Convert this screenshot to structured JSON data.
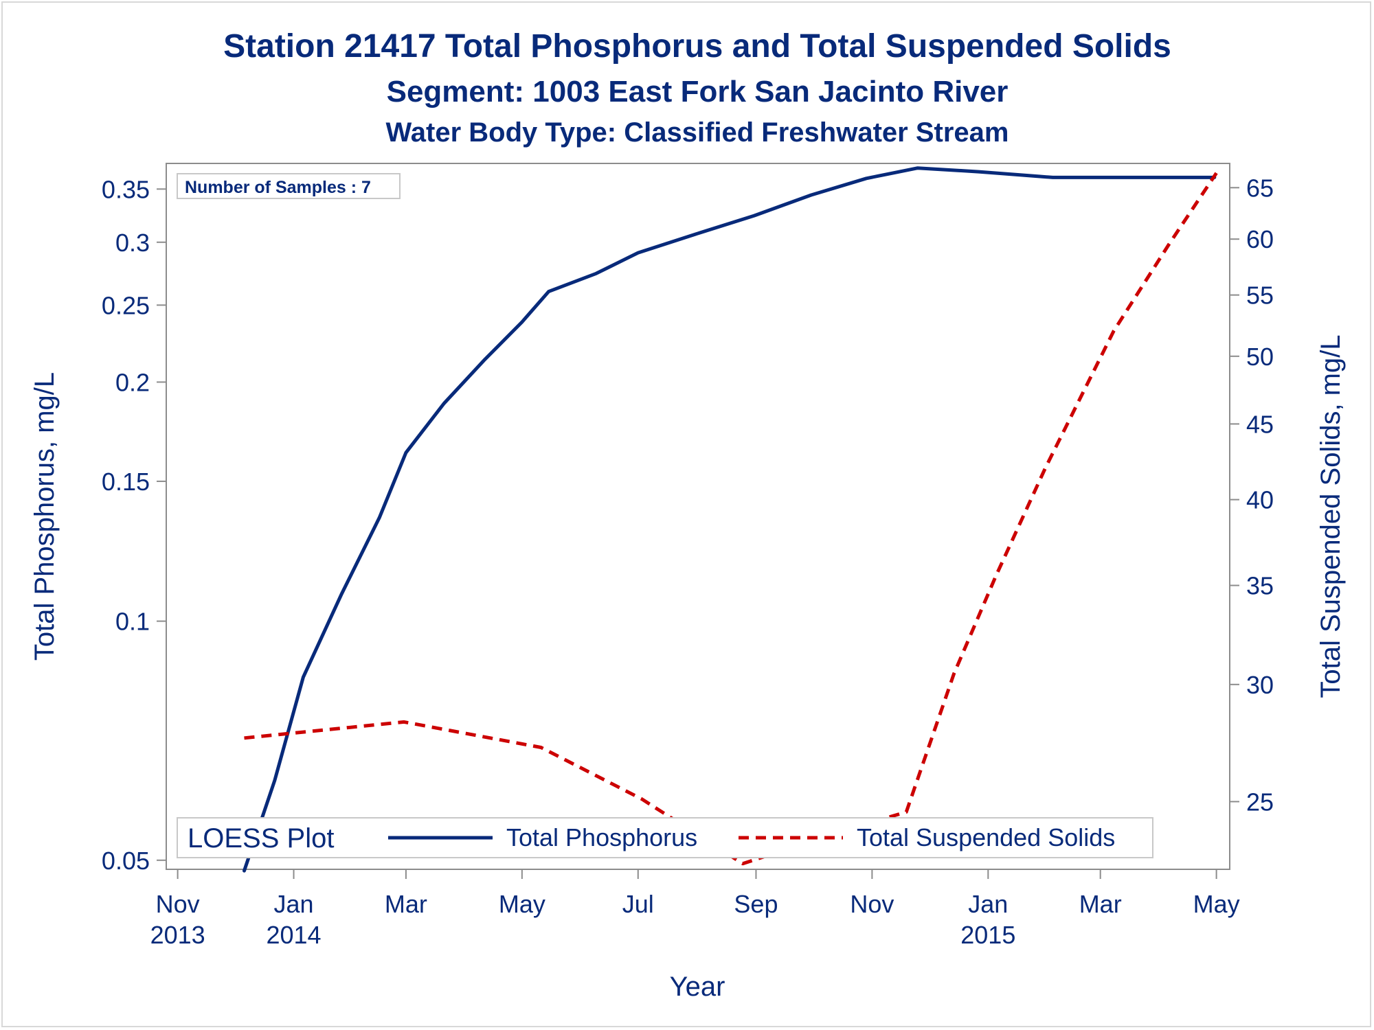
{
  "chart_data": {
    "type": "line",
    "title": "Station 21417  Total Phosphorus and Total Suspended Solids",
    "subtitle": "Segment: 1003  East Fork San Jacinto River",
    "subtitle2": "Water Body Type: Classified Freshwater Stream",
    "xlabel": "Year",
    "ylabel_left": "Total Phosphorus, mg/L",
    "ylabel_right": "Total Suspended Solids, mg/L",
    "inset_label": "Number of Samples : 7",
    "legend": {
      "title": "LOESS Plot",
      "placement": "bottom-left-inside",
      "entries": [
        {
          "name": "Total Phosphorus",
          "style": "solid",
          "color": "#082a7a"
        },
        {
          "name": "Total Suspended Solids",
          "style": "dashed",
          "color": "#cc0000"
        }
      ]
    },
    "x_ticks": [
      {
        "date": "2013-11-01",
        "line1": "Nov",
        "line2": "2013"
      },
      {
        "date": "2014-01-01",
        "line1": "Jan",
        "line2": "2014"
      },
      {
        "date": "2014-03-01",
        "line1": "Mar",
        "line2": ""
      },
      {
        "date": "2014-05-01",
        "line1": "May",
        "line2": ""
      },
      {
        "date": "2014-07-01",
        "line1": "Jul",
        "line2": ""
      },
      {
        "date": "2014-09-01",
        "line1": "Sep",
        "line2": ""
      },
      {
        "date": "2014-11-01",
        "line1": "Nov",
        "line2": ""
      },
      {
        "date": "2015-01-01",
        "line1": "Jan",
        "line2": "2015"
      },
      {
        "date": "2015-03-01",
        "line1": "Mar",
        "line2": ""
      },
      {
        "date": "2015-05-01",
        "line1": "May",
        "line2": ""
      }
    ],
    "xlim": [
      "2013-10-26",
      "2015-05-08"
    ],
    "y_left": {
      "scale": "log",
      "lim": [
        0.0487,
        0.377
      ],
      "ticks": [
        "0.05",
        "0.1",
        "0.15",
        "0.2",
        "0.25",
        "0.3",
        "0.35"
      ]
    },
    "y_right": {
      "scale": "log",
      "lim": [
        22.5,
        67.5
      ],
      "ticks": [
        "25",
        "30",
        "35",
        "40",
        "45",
        "50",
        "55",
        "60",
        "65"
      ]
    },
    "series": [
      {
        "name": "Total Phosphorus",
        "axis": "left",
        "style": "solid",
        "color": "#082a7a",
        "points": [
          {
            "x": "2013-12-06",
            "y": 0.0485
          },
          {
            "x": "2013-12-22",
            "y": 0.063
          },
          {
            "x": "2014-01-06",
            "y": 0.085
          },
          {
            "x": "2014-01-26",
            "y": 0.108
          },
          {
            "x": "2014-02-15",
            "y": 0.135
          },
          {
            "x": "2014-03-01",
            "y": 0.163
          },
          {
            "x": "2014-03-21",
            "y": 0.188
          },
          {
            "x": "2014-04-11",
            "y": 0.213
          },
          {
            "x": "2014-05-01",
            "y": 0.238
          },
          {
            "x": "2014-05-15",
            "y": 0.26
          },
          {
            "x": "2014-06-09",
            "y": 0.274
          },
          {
            "x": "2014-07-01",
            "y": 0.291
          },
          {
            "x": "2014-07-31",
            "y": 0.307
          },
          {
            "x": "2014-08-31",
            "y": 0.324
          },
          {
            "x": "2014-09-30",
            "y": 0.344
          },
          {
            "x": "2014-10-29",
            "y": 0.361
          },
          {
            "x": "2014-11-25",
            "y": 0.372
          },
          {
            "x": "2014-12-27",
            "y": 0.368
          },
          {
            "x": "2015-02-04",
            "y": 0.362
          },
          {
            "x": "2015-03-09",
            "y": 0.362
          },
          {
            "x": "2015-04-08",
            "y": 0.362
          },
          {
            "x": "2015-04-30",
            "y": 0.362
          }
        ]
      },
      {
        "name": "Total Suspended Solids",
        "axis": "right",
        "style": "dashed",
        "color": "#cc0000",
        "points": [
          {
            "x": "2013-12-06",
            "y": 27.6
          },
          {
            "x": "2014-02-28",
            "y": 28.3
          },
          {
            "x": "2014-05-11",
            "y": 27.2
          },
          {
            "x": "2014-07-03",
            "y": 25.1
          },
          {
            "x": "2014-08-25",
            "y": 22.7
          },
          {
            "x": "2014-10-22",
            "y": 24.0
          },
          {
            "x": "2014-11-19",
            "y": 24.6
          },
          {
            "x": "2014-12-14",
            "y": 30.5
          },
          {
            "x": "2015-01-05",
            "y": 35.5
          },
          {
            "x": "2015-01-31",
            "y": 42.0
          },
          {
            "x": "2015-03-08",
            "y": 52.0
          },
          {
            "x": "2015-04-06",
            "y": 59.5
          },
          {
            "x": "2015-05-01",
            "y": 66.5
          }
        ]
      }
    ]
  }
}
